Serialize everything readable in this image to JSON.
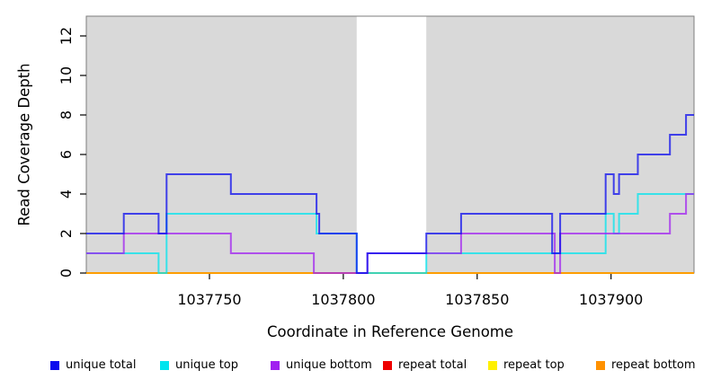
{
  "figure": {
    "background": "#ffffff",
    "x_axis_title": "Coordinate in Reference Genome",
    "y_axis_title": "Read Coverage Depth"
  },
  "chart_data": {
    "type": "line",
    "step": true,
    "title": "",
    "xlabel": "Coordinate in Reference Genome",
    "ylabel": "Read Coverage Depth",
    "xlim": [
      1037704,
      1037931
    ],
    "ylim": [
      0,
      13
    ],
    "x_ticks": [
      1037750,
      1037800,
      1037850,
      1037900
    ],
    "y_ticks": [
      0,
      2,
      4,
      6,
      8,
      10,
      12
    ],
    "grid": false,
    "plot_bg": "#d9d9d9",
    "border_color": "#7d7d7d",
    "mask_region": {
      "x0": 1037805,
      "x1": 1037831,
      "color": "#ffffff"
    },
    "series": [
      {
        "name": "repeat total",
        "color": "#ee0000",
        "points": [
          [
            1037704,
            0
          ],
          [
            1037931,
            0
          ]
        ]
      },
      {
        "name": "repeat top",
        "color": "#fff000",
        "points": [
          [
            1037704,
            0
          ],
          [
            1037931,
            0
          ]
        ]
      },
      {
        "name": "repeat bottom",
        "color": "#ff9100",
        "points": [
          [
            1037704,
            0
          ],
          [
            1037931,
            0
          ]
        ]
      },
      {
        "name": "unique top",
        "color": "#00e4ee",
        "points": [
          [
            1037704,
            1
          ],
          [
            1037731,
            0
          ],
          [
            1037734,
            3
          ],
          [
            1037790,
            2
          ],
          [
            1037805,
            0
          ],
          [
            1037831,
            1
          ],
          [
            1037898,
            3
          ],
          [
            1037901,
            2
          ],
          [
            1037903,
            3
          ],
          [
            1037910,
            4
          ],
          [
            1037931,
            4
          ]
        ]
      },
      {
        "name": "unique bottom",
        "color": "#a020f0",
        "points": [
          [
            1037704,
            1
          ],
          [
            1037718,
            2
          ],
          [
            1037758,
            1
          ],
          [
            1037789,
            0
          ],
          [
            1037809,
            1
          ],
          [
            1037844,
            2
          ],
          [
            1037879,
            0
          ],
          [
            1037881,
            2
          ],
          [
            1037922,
            3
          ],
          [
            1037928,
            4
          ],
          [
            1037931,
            4
          ]
        ]
      },
      {
        "name": "unique total",
        "color": "#0b0bee",
        "points": [
          [
            1037704,
            2
          ],
          [
            1037718,
            3
          ],
          [
            1037731,
            2
          ],
          [
            1037734,
            5
          ],
          [
            1037758,
            4
          ],
          [
            1037790,
            3
          ],
          [
            1037791,
            2
          ],
          [
            1037805,
            0
          ],
          [
            1037809,
            1
          ],
          [
            1037831,
            2
          ],
          [
            1037844,
            3
          ],
          [
            1037878,
            1
          ],
          [
            1037881,
            3
          ],
          [
            1037898,
            5
          ],
          [
            1037901,
            4
          ],
          [
            1037903,
            5
          ],
          [
            1037910,
            6
          ],
          [
            1037922,
            7
          ],
          [
            1037928,
            8
          ],
          [
            1037931,
            8
          ]
        ]
      }
    ],
    "legend": [
      {
        "label": "unique total",
        "color": "#0b0bee"
      },
      {
        "label": "unique top",
        "color": "#00e4ee"
      },
      {
        "label": "unique bottom",
        "color": "#a020f0"
      },
      {
        "label": "repeat total",
        "color": "#ee0000"
      },
      {
        "label": "repeat top",
        "color": "#fff000"
      },
      {
        "label": "repeat bottom",
        "color": "#ff9100"
      }
    ],
    "legend_position": "bottom"
  }
}
